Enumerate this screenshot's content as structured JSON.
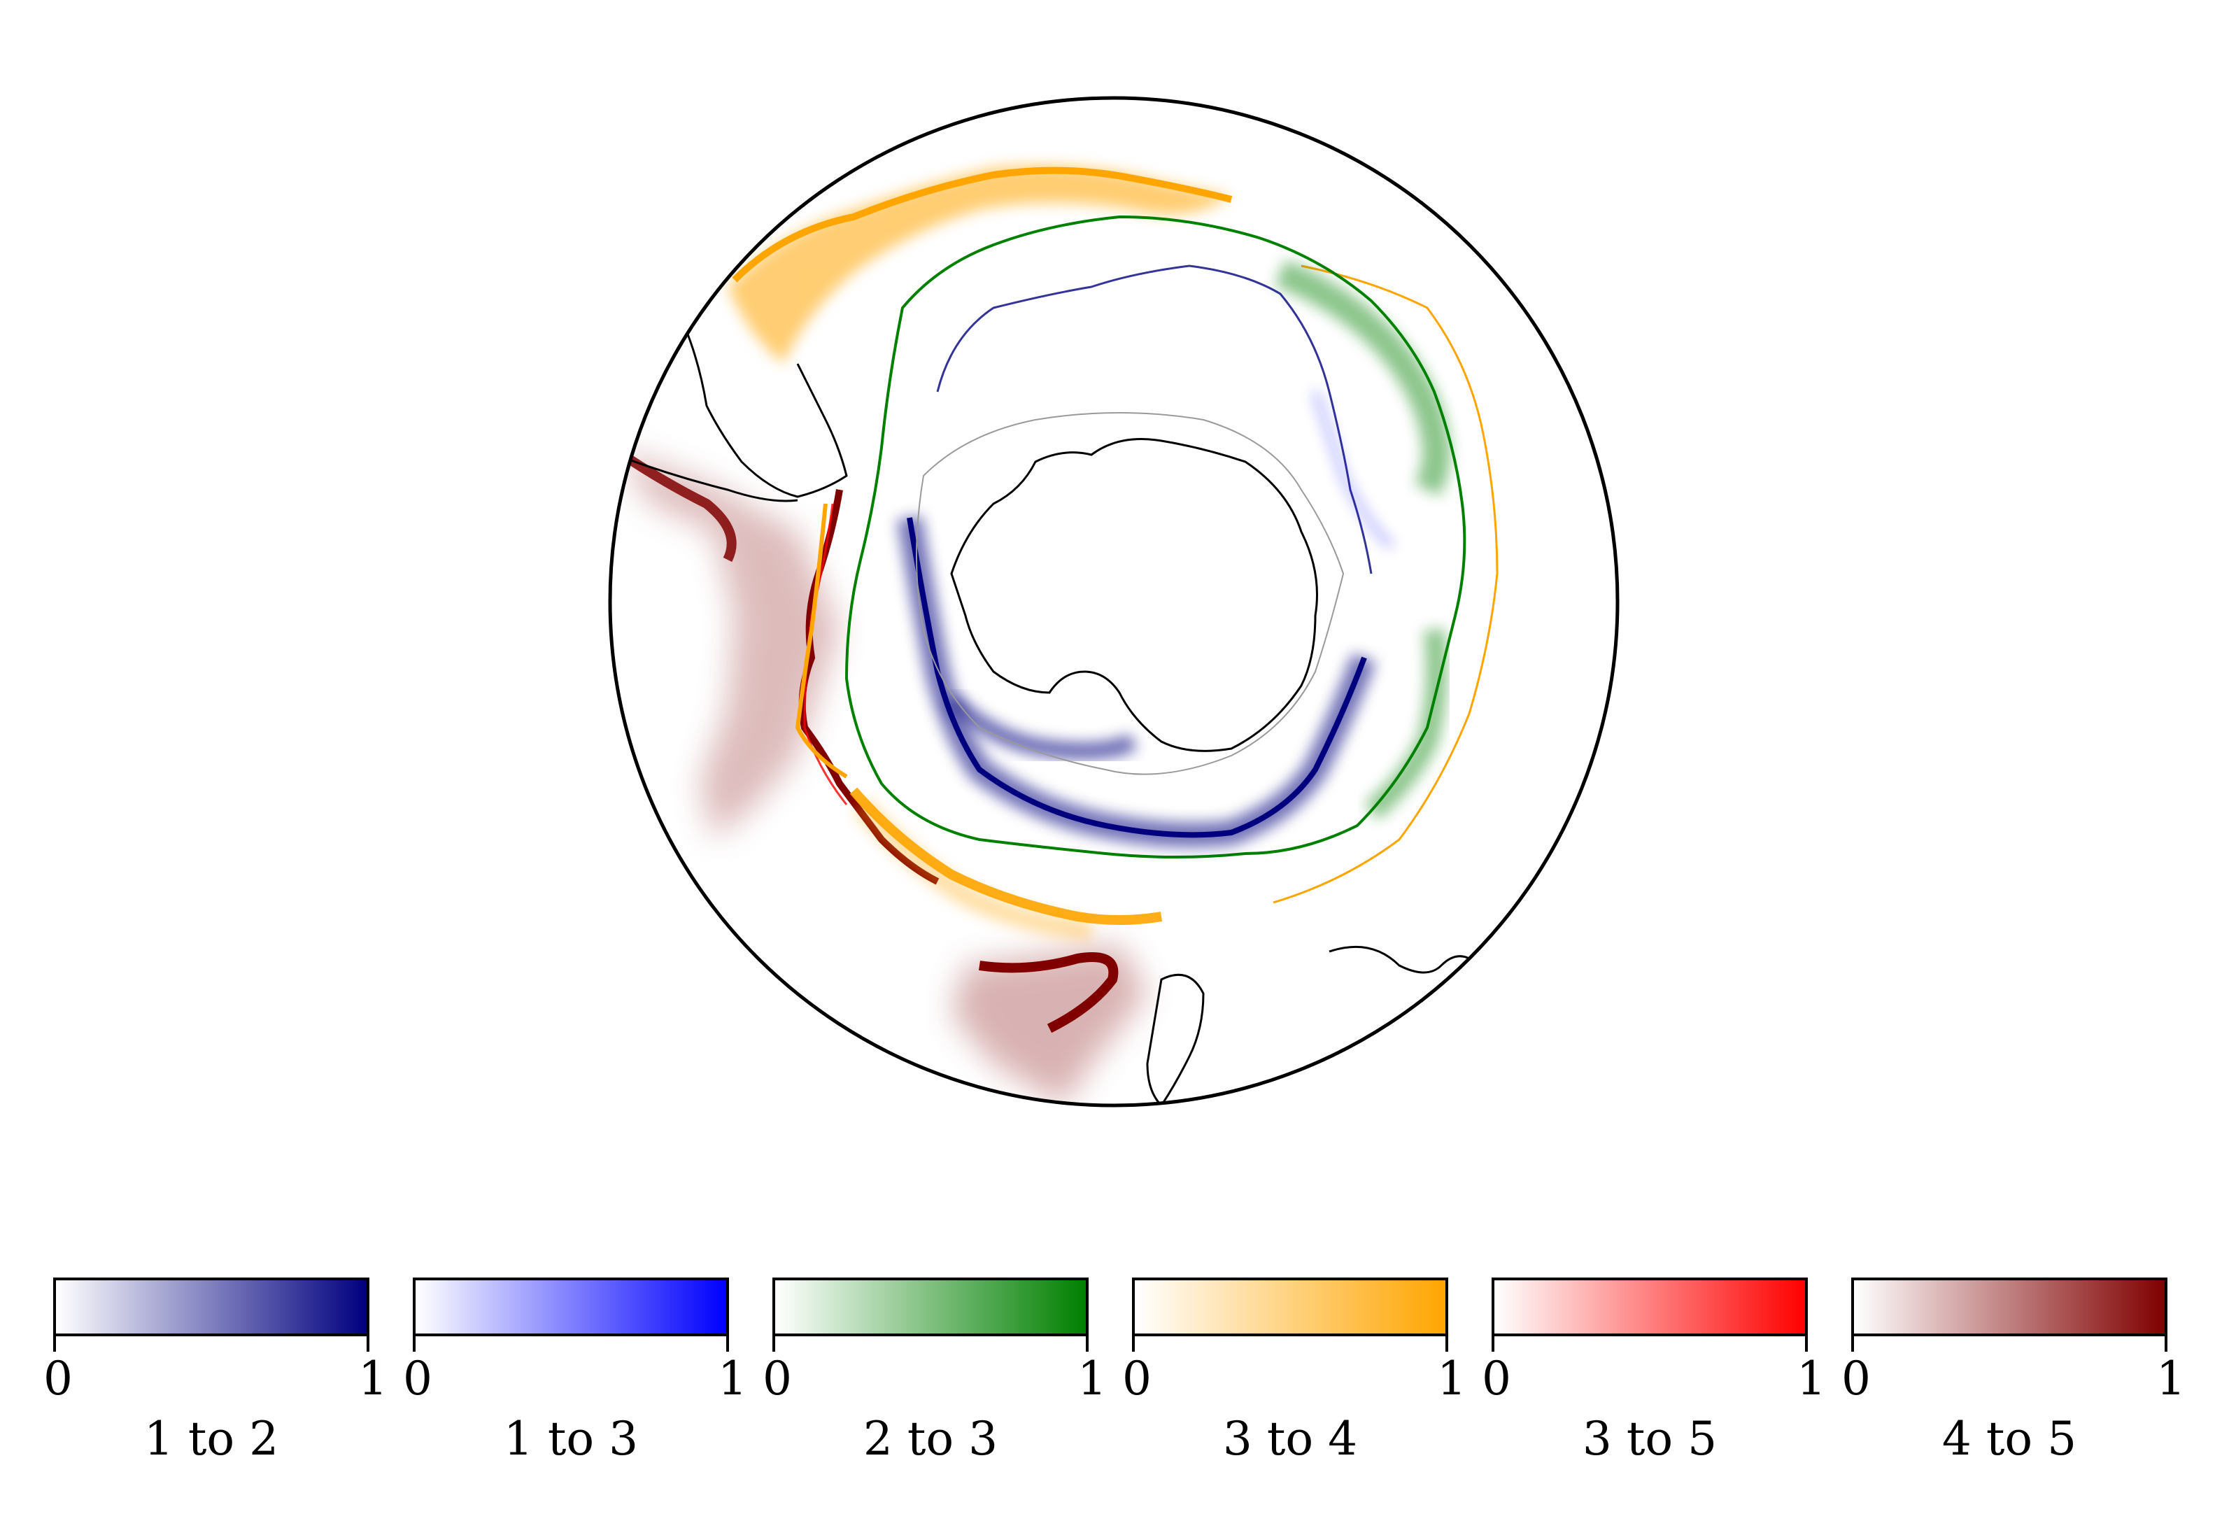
{
  "map": {
    "projection": "south-polar-stereographic",
    "bands": [
      {
        "id": "b12",
        "color": "#00007f",
        "fill": "navy"
      },
      {
        "id": "b13",
        "color": "#0000ff",
        "fill": "blue"
      },
      {
        "id": "b23",
        "color": "#008000",
        "fill": "green"
      },
      {
        "id": "b34",
        "color": "#ffa500",
        "fill": "orange"
      },
      {
        "id": "b35",
        "color": "#ff0000",
        "fill": "red"
      },
      {
        "id": "b45",
        "color": "#800000",
        "fill": "maroon"
      }
    ]
  },
  "colorbars": [
    {
      "label": "1 to 2",
      "color_from": "#ffffff",
      "color_to": "#00007f",
      "tick_min": "0",
      "tick_max": "1"
    },
    {
      "label": "1 to 3",
      "color_from": "#ffffff",
      "color_to": "#0000ff",
      "tick_min": "0",
      "tick_max": "1"
    },
    {
      "label": "2 to 3",
      "color_from": "#ffffff",
      "color_to": "#008000",
      "tick_min": "0",
      "tick_max": "1"
    },
    {
      "label": "3 to 4",
      "color_from": "#ffffff",
      "color_to": "#ffa500",
      "tick_min": "0",
      "tick_max": "1"
    },
    {
      "label": "3 to 5",
      "color_from": "#ffffff",
      "color_to": "#ff0000",
      "tick_min": "0",
      "tick_max": "1"
    },
    {
      "label": "4 to 5",
      "color_from": "#ffffff",
      "color_to": "#800000",
      "tick_min": "0",
      "tick_max": "1"
    }
  ]
}
